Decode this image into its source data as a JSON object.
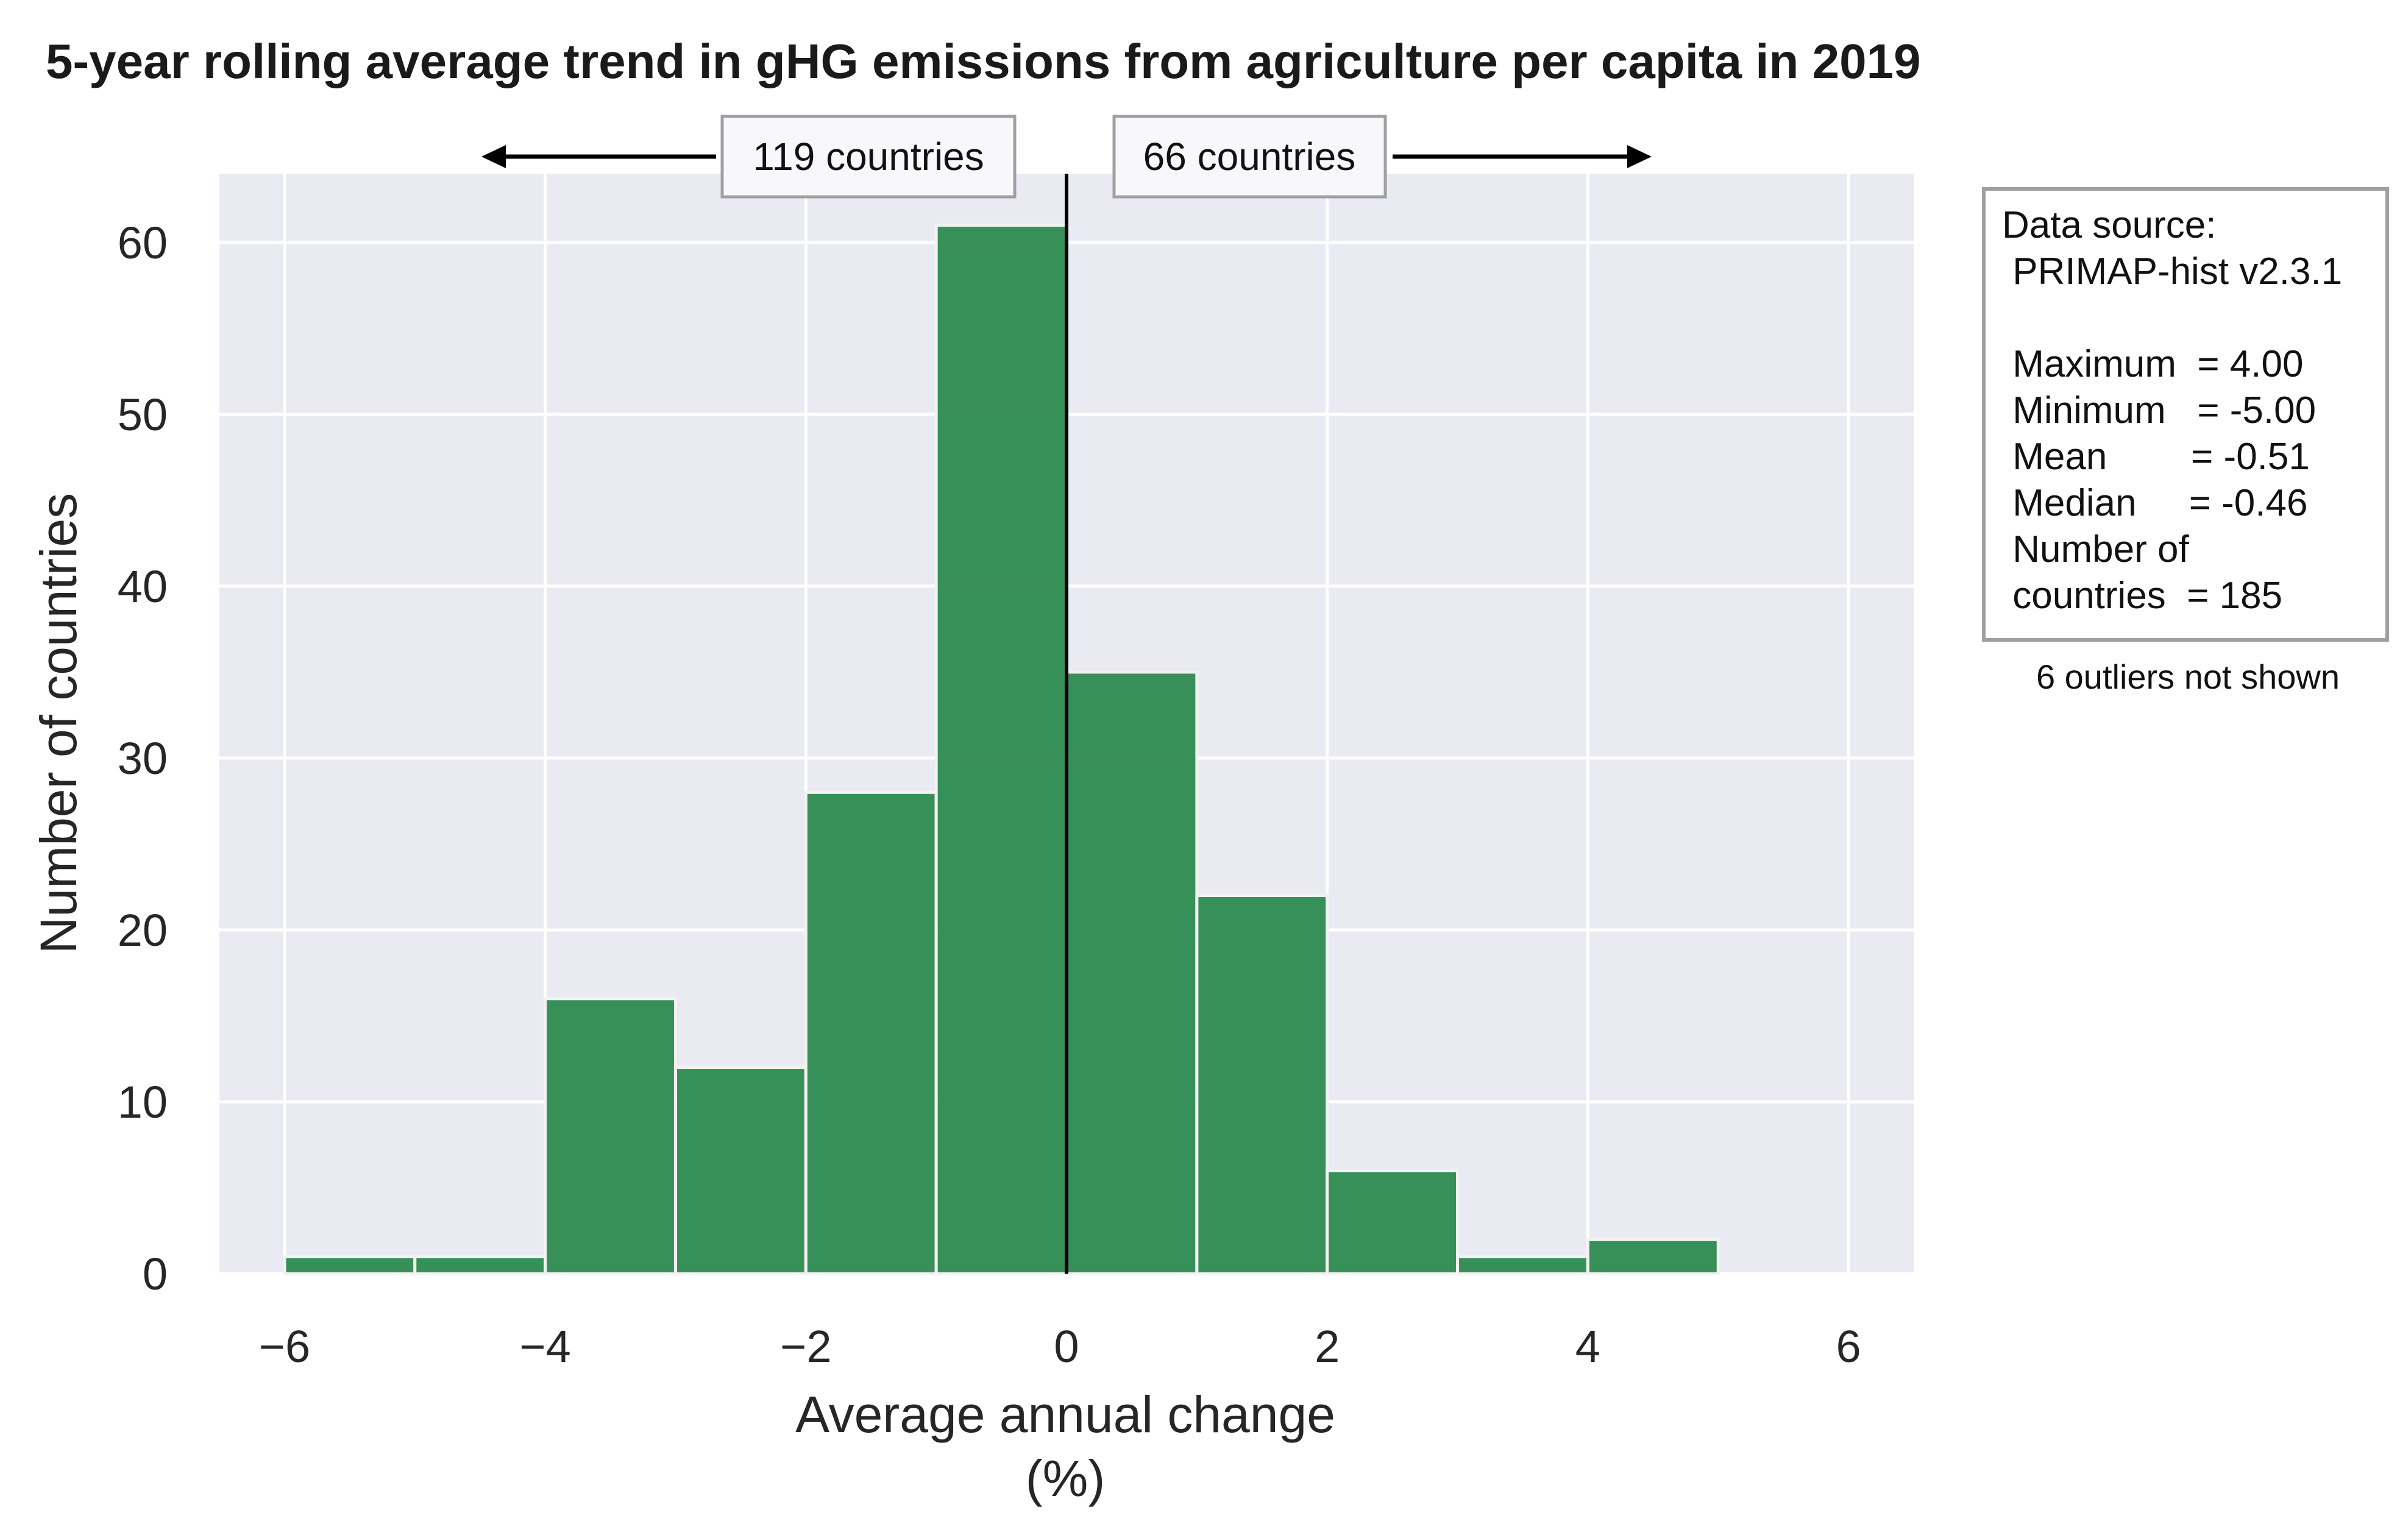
{
  "chart_data": {
    "type": "bar",
    "title": "5-year rolling average trend in gHG emissions from agriculture per capita in 2019",
    "xlabel": "Average annual change\n(%)",
    "ylabel": "Number of countries",
    "xlim": [
      -6.5,
      6.5
    ],
    "ylim": [
      0,
      64
    ],
    "xticks": [
      -6,
      -4,
      -2,
      0,
      2,
      4,
      6
    ],
    "xtick_labels": [
      "−6",
      "−4",
      "−2",
      "0",
      "2",
      "4",
      "6"
    ],
    "yticks": [
      0,
      10,
      20,
      30,
      40,
      50,
      60
    ],
    "yticks_labels": [
      "0",
      "10",
      "20",
      "30",
      "40",
      "50",
      "60"
    ],
    "grid": true,
    "bar_color": "#2e8b50",
    "background_color": "#eaeaf2",
    "bins": [
      {
        "x0": -6,
        "x1": -5,
        "count": 1
      },
      {
        "x0": -5,
        "x1": -4,
        "count": 1
      },
      {
        "x0": -4,
        "x1": -3,
        "count": 16
      },
      {
        "x0": -3,
        "x1": -2,
        "count": 12
      },
      {
        "x0": -2,
        "x1": -1,
        "count": 28
      },
      {
        "x0": -1,
        "x1": 0,
        "count": 61
      },
      {
        "x0": 0,
        "x1": 1,
        "count": 35
      },
      {
        "x0": 1,
        "x1": 2,
        "count": 22
      },
      {
        "x0": 2,
        "x1": 3,
        "count": 6
      },
      {
        "x0": 3,
        "x1": 4,
        "count": 1
      },
      {
        "x0": 4,
        "x1": 5,
        "count": 2
      }
    ],
    "vline_x": 0,
    "annotations": {
      "left_count": "119 countries",
      "right_count": "66 countries"
    },
    "info_box": [
      "Data source:",
      " PRIMAP-hist v2.3.1",
      "",
      " Maximum  = 4.00",
      " Minimum   = -5.00",
      " Mean        = -0.51",
      " Median     = -0.46",
      " Number of",
      " countries  = 185"
    ],
    "note": "6 outliers not shown"
  }
}
